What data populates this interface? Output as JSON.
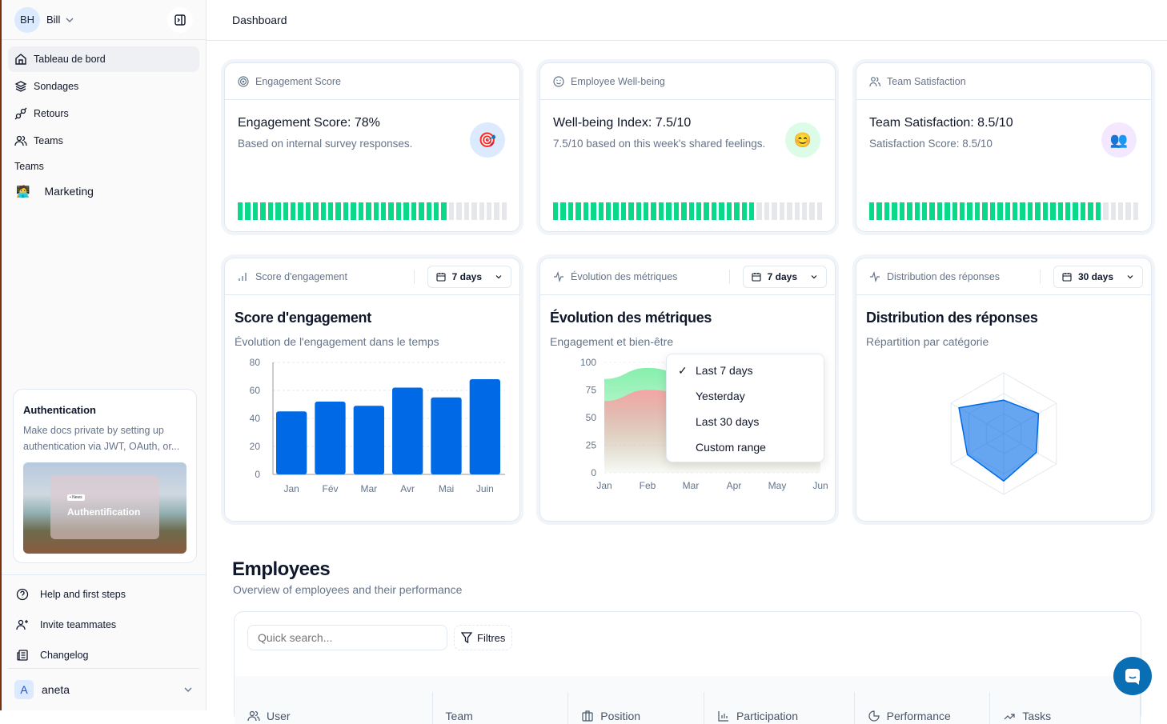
{
  "sidebar": {
    "user": {
      "initials": "BH",
      "name": "Bill"
    },
    "nav": [
      {
        "label": "Tableau de bord",
        "icon": "home-icon"
      },
      {
        "label": "Sondages",
        "icon": "layers-icon"
      },
      {
        "label": "Retours",
        "icon": "plug-icon"
      },
      {
        "label": "Teams",
        "icon": "users-icon"
      }
    ],
    "teams_label": "Teams",
    "teams": [
      {
        "label": "Marketing",
        "icon": "technologist-emoji-icon"
      }
    ],
    "promo": {
      "title": "Authentication",
      "text": "Make docs private by setting up authentication via JWT, OAuth, or...",
      "badge": "• News",
      "image_title": "Authentification"
    },
    "bottom": [
      {
        "label": "Help and first steps",
        "icon": "help-circle-icon"
      },
      {
        "label": "Invite teammates",
        "icon": "user-plus-icon"
      },
      {
        "label": "Changelog",
        "icon": "newspaper-icon"
      }
    ],
    "account": {
      "initial": "A",
      "name": "aneta"
    }
  },
  "header": {
    "title": "Dashboard"
  },
  "kpis": [
    {
      "header": "Engagement Score",
      "icon": "target-icon",
      "title": "Engagement Score: 78%",
      "sub": "Based on internal survey responses.",
      "emoji": "🎯",
      "emoji_bg": "#dbeafe",
      "percent": 78
    },
    {
      "header": "Employee Well-being",
      "icon": "smile-icon",
      "title": "Well-being Index: 7.5/10",
      "sub": "7.5/10 based on this week's shared feelings.",
      "emoji": "😊",
      "emoji_bg": "#dcfce7",
      "percent": 75
    },
    {
      "header": "Team Satisfaction",
      "icon": "users-icon",
      "title": "Team Satisfaction: 8.5/10",
      "sub": "Satisfaction Score: 8.5/10",
      "emoji": "👥",
      "emoji_bg": "#f3e8ff",
      "percent": 85
    }
  ],
  "charts_cards": [
    {
      "header": "Score d'engagement",
      "range": "7 days",
      "title": "Score d'engagement",
      "sub": "Évolution de l'engagement dans le temps"
    },
    {
      "header": "Évolution des métriques",
      "range": "7 days",
      "title": "Évolution des métriques",
      "sub": "Engagement et bien-être"
    },
    {
      "header": "Distribution des réponses",
      "range": "30 days",
      "title": "Distribution des réponses",
      "sub": "Répartition par catégorie"
    }
  ],
  "range_menu": {
    "options": [
      "Last 7 days",
      "Yesterday",
      "Last 30 days",
      "Custom range"
    ],
    "selected": "Last 7 days"
  },
  "chart_data": [
    {
      "type": "bar",
      "categories": [
        "Jan",
        "Fév",
        "Mar",
        "Avr",
        "Mai",
        "Juin"
      ],
      "values": [
        45,
        52,
        49,
        62,
        55,
        68
      ],
      "ylim": [
        0,
        80
      ],
      "yticks": [
        "0",
        "20",
        "40",
        "60",
        "80"
      ],
      "grid": true,
      "color": "#0069e6"
    },
    {
      "type": "area",
      "categories": [
        "Jan",
        "Feb",
        "Mar",
        "Apr",
        "May",
        "Jun"
      ],
      "ylim": [
        0,
        100
      ],
      "yticks": [
        "0",
        "25",
        "50",
        "75",
        "100"
      ],
      "series": [
        {
          "values": [
            85,
            95,
            88,
            60,
            72,
            70
          ],
          "color": "#86efac"
        },
        {
          "values": [
            65,
            75,
            72,
            58,
            64,
            66
          ],
          "color": "#f4a5a5"
        }
      ]
    },
    {
      "type": "radar",
      "axes": 6,
      "values": [
        55,
        66,
        62,
        78,
        69,
        85
      ],
      "max": 100,
      "color": "#0069e6"
    }
  ],
  "employees": {
    "title": "Employees",
    "sub": "Overview of employees and their performance",
    "search_placeholder": "Quick search...",
    "filter": "Filtres",
    "columns": [
      {
        "label": "User",
        "icon": "users-icon"
      },
      {
        "label": "Team",
        "icon": ""
      },
      {
        "label": "Position",
        "icon": "briefcase-icon"
      },
      {
        "label": "Participation",
        "icon": "bar-chart-icon"
      },
      {
        "label": "Performance",
        "icon": "pie-icon"
      },
      {
        "label": "Tasks",
        "icon": "trend-icon"
      }
    ]
  }
}
